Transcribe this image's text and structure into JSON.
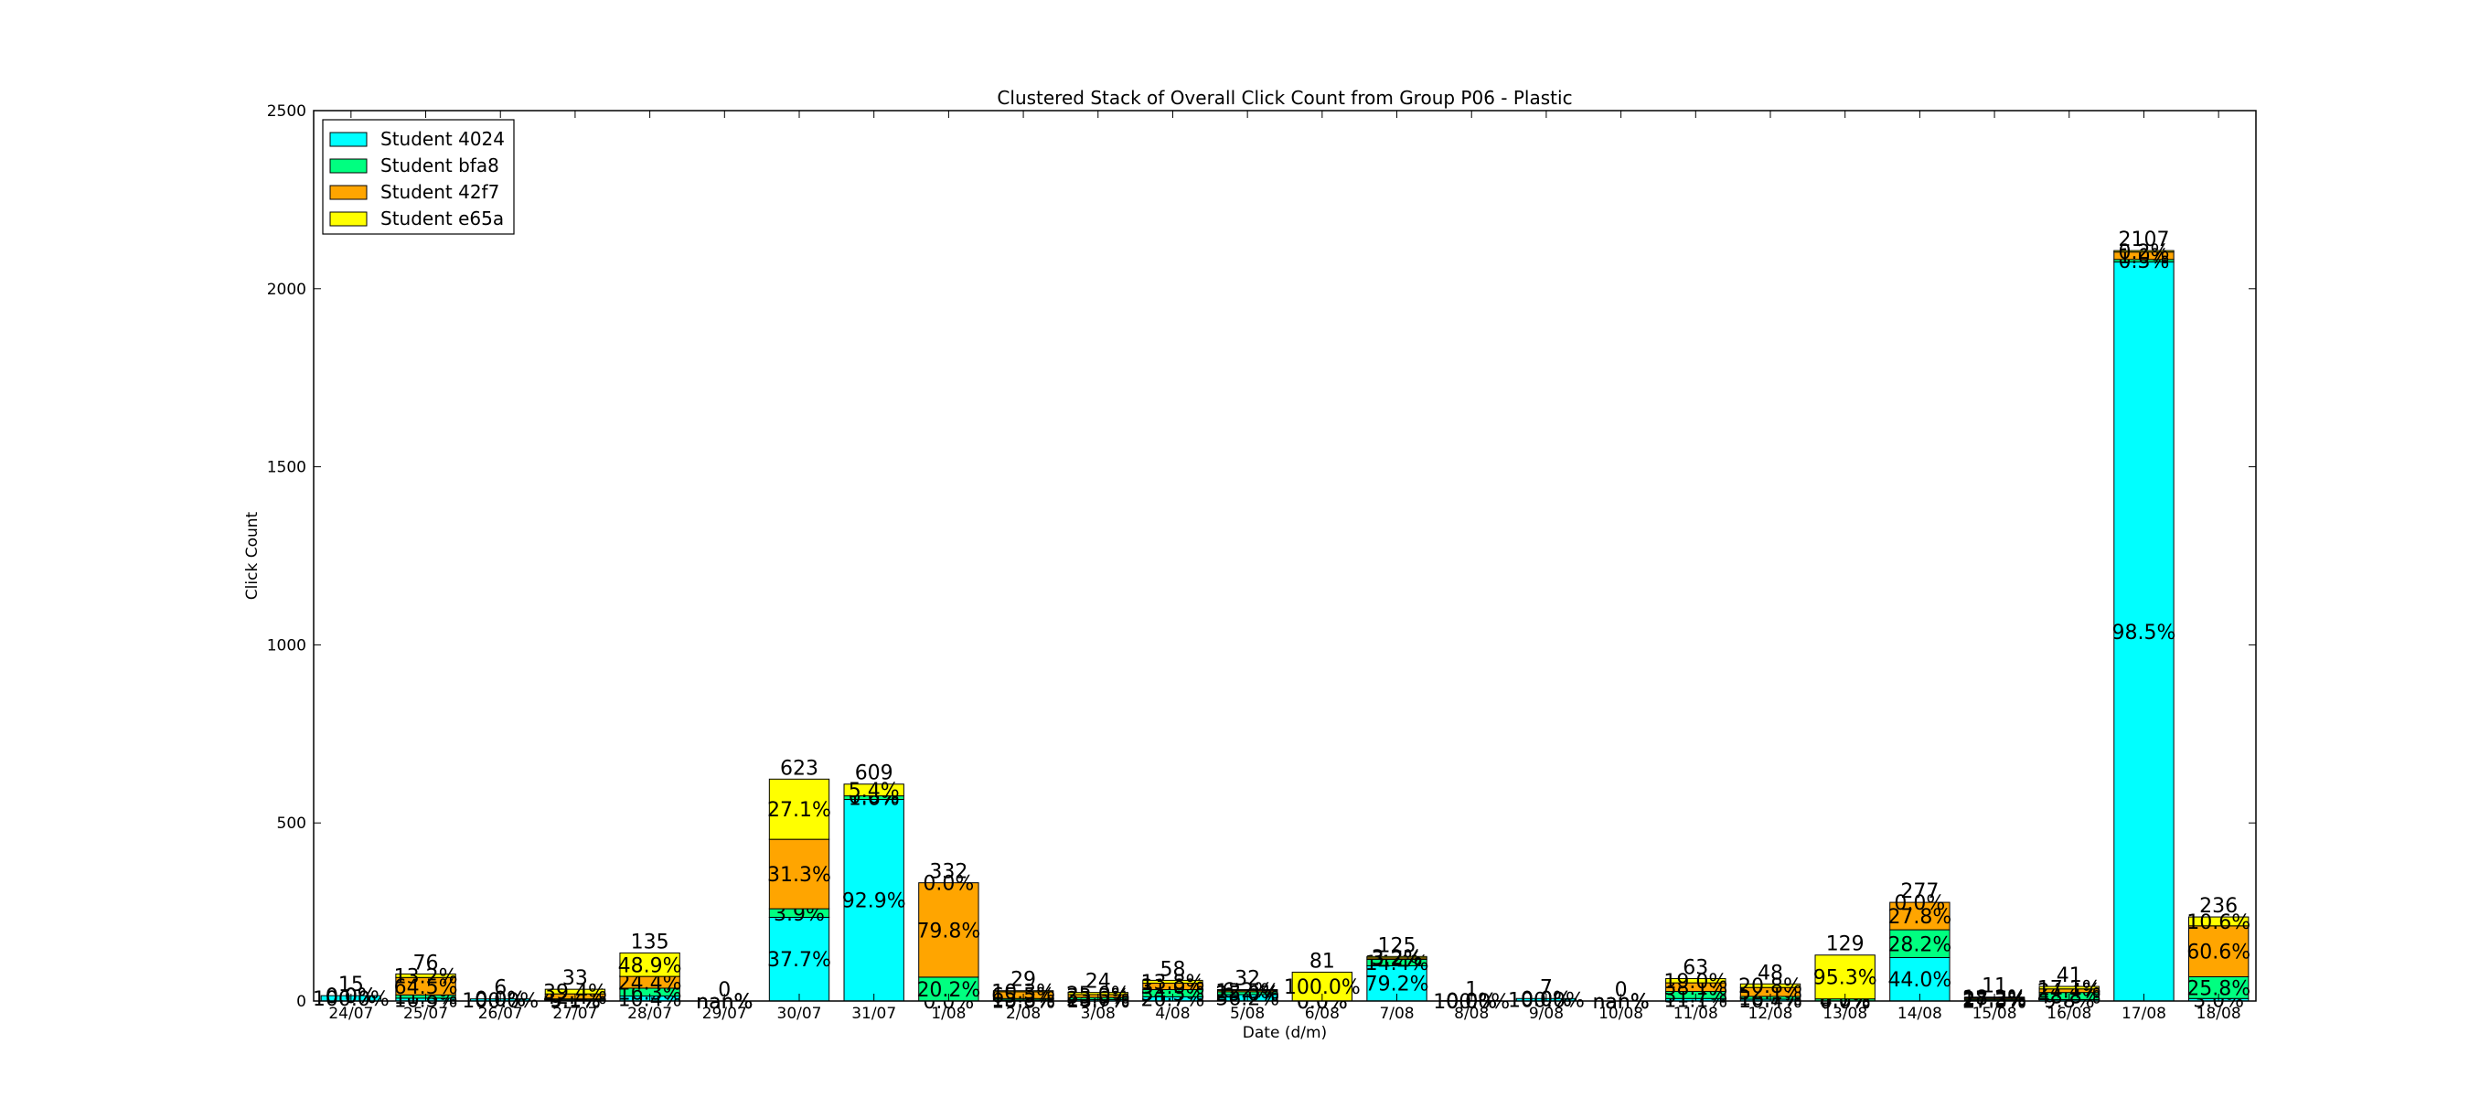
{
  "chart_data": {
    "type": "bar",
    "stacked": true,
    "title": "Clustered Stack of Overall Click Count from Group P06 - Plastic",
    "xlabel": "Date (d/m)",
    "ylabel": "Click Count",
    "ylim": [
      0,
      2500
    ],
    "yticks": [
      0,
      500,
      1000,
      1500,
      2000,
      2500
    ],
    "legend_position": "top-left",
    "grid": false,
    "categories": [
      "24/07",
      "25/07",
      "26/07",
      "27/07",
      "28/07",
      "29/07",
      "30/07",
      "31/07",
      "1/08",
      "2/08",
      "3/08",
      "4/08",
      "5/08",
      "6/08",
      "7/08",
      "8/08",
      "9/08",
      "10/08",
      "11/08",
      "12/08",
      "13/08",
      "14/08",
      "15/08",
      "16/08",
      "17/08",
      "18/08"
    ],
    "totals": [
      15,
      76,
      6,
      33,
      135,
      0,
      623,
      609,
      332,
      29,
      24,
      58,
      32,
      81,
      125,
      1,
      7,
      0,
      63,
      48,
      129,
      277,
      11,
      41,
      2107,
      236
    ],
    "total_labels": [
      "15",
      "76",
      "6",
      "33",
      "135",
      "0",
      "623",
      "609",
      "332",
      "29",
      "24",
      "58",
      "32",
      "81",
      "125",
      "1",
      "7",
      "0",
      "63",
      "48",
      "129",
      "277",
      "11",
      "41",
      "2107",
      "236"
    ],
    "series": [
      {
        "name": "Student 4024",
        "color": "#00ffff",
        "values": [
          15,
          8,
          6,
          3,
          14,
          0,
          235,
          566,
          0,
          3,
          4,
          12,
          18,
          0,
          99,
          1,
          7,
          0,
          7,
          5,
          0,
          122,
          3,
          4,
          2075,
          7
        ]
      },
      {
        "name": "Student bfa8",
        "color": "#00ff80",
        "values": [
          0,
          9,
          0,
          3,
          22,
          0,
          24,
          10,
          67,
          4,
          6,
          20,
          8,
          0,
          18,
          0,
          0,
          0,
          20,
          8,
          6,
          78,
          3,
          20,
          7,
          61
        ]
      },
      {
        "name": "Student 42f7",
        "color": "#ffa500",
        "values": [
          0,
          49,
          0,
          14,
          33,
          0,
          195,
          0,
          265,
          19,
          8,
          18,
          4,
          0,
          4,
          0,
          0,
          0,
          24,
          25,
          0,
          77,
          3,
          10,
          21,
          143
        ]
      },
      {
        "name": "Student e65a",
        "color": "#ffff00",
        "values": [
          0,
          10,
          0,
          13,
          66,
          0,
          169,
          33,
          0,
          3,
          6,
          8,
          2,
          81,
          4,
          0,
          0,
          0,
          12,
          10,
          123,
          0,
          2,
          7,
          4,
          25
        ]
      }
    ],
    "segment_labels": [
      [
        "100.0%",
        "10.5%",
        "100.0%",
        "9.1%",
        "10.4%",
        "nan%",
        "37.7%",
        "92.9%",
        "0.0%",
        "10.3%",
        "16.7%",
        "20.7%",
        "56.2%",
        "0.0%",
        "79.2%",
        "100.0%",
        "100.0%",
        "nan%",
        "11.1%",
        "10.4%",
        "0.0%",
        "44.0%",
        "27.3%",
        "9.8%",
        "98.5%",
        "3.0%"
      ],
      [
        "0.0%",
        "11.8%",
        "0.0%",
        "9.1%",
        "16.3%",
        "nan%",
        "3.9%",
        "1.6%",
        "20.2%",
        "13.8%",
        "25.0%",
        "34.5%",
        "25.0%",
        "0.0%",
        "14.4%",
        "0.0%",
        "0.0%",
        "nan%",
        "31.7%",
        "16.7%",
        "4.7%",
        "28.2%",
        "27.3%",
        "48.8%",
        "0.3%",
        "25.8%"
      ],
      [
        "0.0%",
        "64.5%",
        "0.0%",
        "42.4%",
        "24.4%",
        "nan%",
        "31.3%",
        "0.0%",
        "79.8%",
        "65.5%",
        "33.3%",
        "31.0%",
        "12.5%",
        "0.0%",
        "3.2%",
        "0.0%",
        "0.0%",
        "nan%",
        "38.1%",
        "52.1%",
        "0.0%",
        "27.8%",
        "27.3%",
        "24.4%",
        "1.0%",
        "60.6%"
      ],
      [
        "0.0%",
        "13.2%",
        "0.0%",
        "39.4%",
        "48.9%",
        "nan%",
        "27.1%",
        "5.4%",
        "0.0%",
        "10.3%",
        "25.0%",
        "13.8%",
        "6.2%",
        "100.0%",
        "3.2%",
        "0.0%",
        "0.0%",
        "nan%",
        "19.0%",
        "20.8%",
        "95.3%",
        "0.0%",
        "18.2%",
        "17.1%",
        "0.2%",
        "10.6%"
      ]
    ]
  }
}
